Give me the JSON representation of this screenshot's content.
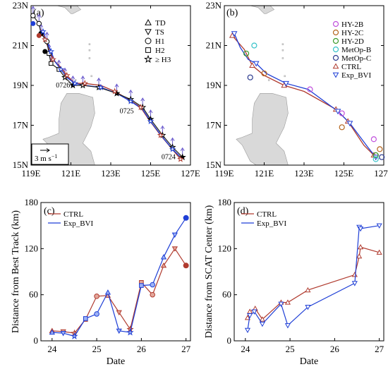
{
  "colors": {
    "ctrl": "#b03a2e",
    "exp": "#1f3fd6",
    "ctrl_fill": "#e3a79b",
    "exp_fill": "#9db2f5",
    "land": "#d9d9d9",
    "track": "#222222",
    "wind_arrow": "#6a5acd",
    "hy2b": "#c04fdc",
    "hy2c": "#b5651d",
    "hy2d": "#3c9a2a",
    "metopb": "#36c2c9",
    "metopc": "#2b3a8f"
  },
  "chart_data": [
    {
      "panel": "(a)",
      "type": "scatter",
      "xlim": [
        119,
        127
      ],
      "ylim": [
        15,
        23
      ],
      "xticks": [
        "119E",
        "121E",
        "123E",
        "125E",
        "127E"
      ],
      "yticks": [
        "15N",
        "17N",
        "19N",
        "21N",
        "23N"
      ],
      "legend": [
        "TD",
        "TS",
        "H1",
        "H2",
        "≥ H3"
      ],
      "legend_markers": [
        "triangle",
        "triangle-down",
        "circle",
        "square",
        "star"
      ],
      "scale_label": "3  m s",
      "scale_exponent": "−1",
      "annotations": [
        {
          "text": "0726",
          "lon": 120.6,
          "lat": 18.9
        },
        {
          "text": "0725",
          "lon": 123.8,
          "lat": 17.6
        },
        {
          "text": "0724",
          "lon": 125.9,
          "lat": 15.3
        }
      ],
      "best_track": {
        "lon": [
          126.6,
          126.1,
          125.6,
          125.0,
          124.6,
          124.0,
          123.3,
          122.4,
          121.6,
          121.1,
          120.7,
          120.4,
          120.0,
          119.9,
          119.8,
          119.5,
          119.4,
          119.1
        ],
        "lat": [
          15.4,
          15.9,
          16.5,
          17.3,
          17.9,
          18.3,
          18.6,
          18.9,
          19.0,
          19.0,
          19.4,
          19.8,
          20.1,
          20.6,
          21.2,
          21.6,
          22.1,
          22.5
        ]
      },
      "ctrl_track": {
        "lon": [
          126.5,
          126.0,
          125.5,
          124.9,
          124.5,
          123.9,
          123.2,
          122.5,
          121.7,
          121.2,
          120.8,
          120.5,
          120.1,
          119.9,
          119.7,
          119.5
        ],
        "lat": [
          15.3,
          15.9,
          16.5,
          17.3,
          17.9,
          18.3,
          18.7,
          19.0,
          19.1,
          19.1,
          19.5,
          19.9,
          20.3,
          20.8,
          21.3,
          21.8
        ]
      },
      "exp_track": {
        "lon": [
          126.6,
          126.1,
          125.6,
          125.0,
          124.6,
          124.0,
          123.3,
          122.5,
          121.7,
          121.2,
          120.8,
          120.5,
          120.2,
          120.0,
          119.8,
          119.6
        ],
        "lat": [
          15.3,
          15.8,
          16.4,
          17.2,
          17.8,
          18.2,
          18.6,
          18.9,
          19.0,
          19.1,
          19.4,
          19.8,
          20.2,
          20.7,
          21.2,
          21.7
        ]
      }
    },
    {
      "panel": "(b)",
      "type": "scatter",
      "xlim": [
        119,
        127
      ],
      "ylim": [
        15,
        23
      ],
      "xticks": [
        "119E",
        "121E",
        "123E",
        "125E",
        "127E"
      ],
      "yticks": [
        "15N",
        "17N",
        "19N",
        "21N",
        "23N"
      ],
      "legend": [
        "HY-2B",
        "HY-2C",
        "HY-2D",
        "MetOp-B",
        "MetOp-C",
        "CTRL",
        "Exp_BVI"
      ],
      "scat_centers": [
        {
          "sat": "HY-2B",
          "lon": 126.5,
          "lat": 16.3
        },
        {
          "sat": "HY-2C",
          "lon": 126.8,
          "lat": 15.8
        },
        {
          "sat": "HY-2D",
          "lon": 126.6,
          "lat": 15.5
        },
        {
          "sat": "MetOp-B",
          "lon": 126.6,
          "lat": 15.3
        },
        {
          "sat": "MetOp-C",
          "lon": 126.9,
          "lat": 15.4
        },
        {
          "sat": "HY-2C",
          "lon": 124.9,
          "lat": 16.9
        },
        {
          "sat": "HY-2B",
          "lon": 124.9,
          "lat": 17.6
        },
        {
          "sat": "HY-2B",
          "lon": 123.3,
          "lat": 18.8
        },
        {
          "sat": "HY-2C",
          "lon": 121.0,
          "lat": 19.6
        },
        {
          "sat": "MetOp-C",
          "lon": 120.3,
          "lat": 19.4
        },
        {
          "sat": "HY-2D",
          "lon": 120.1,
          "lat": 20.6
        },
        {
          "sat": "MetOp-B",
          "lon": 120.5,
          "lat": 21.0
        }
      ],
      "ctrl_track": {
        "lon": [
          126.5,
          126.0,
          125.2,
          124.6,
          123.0,
          122.0,
          121.0,
          120.4,
          120.0,
          119.4
        ],
        "lat": [
          15.5,
          16.0,
          17.2,
          17.8,
          18.7,
          19.0,
          19.5,
          20.0,
          20.8,
          21.5
        ]
      },
      "exp_track": {
        "lon": [
          126.6,
          126.2,
          125.3,
          124.7,
          123.2,
          122.1,
          121.1,
          120.6,
          120.2,
          119.8,
          119.5
        ],
        "lat": [
          15.4,
          15.9,
          17.1,
          17.7,
          18.8,
          19.1,
          19.6,
          20.1,
          20.3,
          20.9,
          21.6
        ]
      },
      "marker_tracks": {
        "ctrl_markers": {
          "lon": [
            126.5,
            125.2,
            124.6,
            122.0,
            120.4,
            119.4
          ],
          "lat": [
            15.5,
            17.2,
            17.8,
            19.0,
            20.0,
            21.5
          ]
        },
        "exp_markers": {
          "lon": [
            126.6,
            125.3,
            124.7,
            122.1,
            120.6,
            119.5
          ],
          "lat": [
            15.4,
            17.1,
            17.7,
            19.1,
            20.1,
            21.6
          ]
        }
      }
    },
    {
      "panel": "(c)",
      "type": "line",
      "xlabel": "Date",
      "ylabel": "Distance from Best Track (km)",
      "xlim": [
        23.75,
        27.1
      ],
      "ylim": [
        0,
        180
      ],
      "xticks": [
        24,
        25,
        26,
        27
      ],
      "yticks": [
        0,
        60,
        120,
        180
      ],
      "legend": [
        "CTRL",
        "Exp_BVI"
      ],
      "series": [
        {
          "name": "CTRL",
          "x": [
            24.0,
            24.25,
            24.5,
            24.75,
            25.0,
            25.25,
            25.5,
            25.75,
            26.0,
            26.25,
            26.5,
            26.75,
            27.0
          ],
          "values": [
            13,
            12,
            10,
            28,
            58,
            59,
            37,
            15,
            76,
            60,
            98,
            120,
            98
          ]
        },
        {
          "name": "Exp_BVI",
          "x": [
            24.0,
            24.25,
            24.5,
            24.75,
            25.0,
            25.25,
            25.5,
            25.75,
            26.0,
            26.25,
            26.5,
            26.75,
            27.0
          ],
          "values": [
            11,
            10,
            6,
            29,
            35,
            63,
            13,
            11,
            72,
            73,
            109,
            138,
            160
          ]
        }
      ]
    },
    {
      "panel": "(d)",
      "type": "line",
      "xlabel": "Date",
      "ylabel": "Distance from SCAT Center (km)",
      "xlim": [
        23.75,
        27.1
      ],
      "ylim": [
        0,
        180
      ],
      "xticks": [
        24,
        25,
        26,
        27
      ],
      "yticks": [
        0,
        60,
        120,
        180
      ],
      "legend": [
        "CTRL",
        "Exp_BVI"
      ],
      "series": [
        {
          "name": "CTRL",
          "x": [
            24.05,
            24.1,
            24.22,
            24.38,
            24.8,
            24.95,
            25.4,
            26.45,
            26.55,
            26.58,
            27.0
          ],
          "values": [
            30,
            38,
            42,
            28,
            50,
            50,
            66,
            86,
            110,
            122,
            115
          ]
        },
        {
          "name": "Exp_BVI",
          "x": [
            24.05,
            24.1,
            24.2,
            24.38,
            24.8,
            24.95,
            25.4,
            26.45,
            26.55,
            26.58,
            27.0
          ],
          "values": [
            14,
            33,
            38,
            22,
            48,
            20,
            44,
            75,
            148,
            146,
            150
          ]
        }
      ]
    }
  ]
}
